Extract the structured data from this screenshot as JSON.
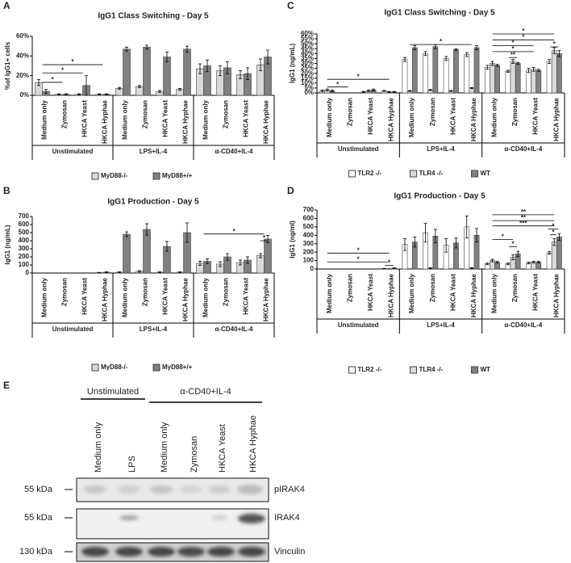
{
  "chart_data": [
    {
      "type": "bar",
      "panel": "A",
      "title": "IgG1 Class Switching - Day 5",
      "y_label": "%of IgG1+ cells",
      "categories": [
        "Medium only",
        "Zymosan",
        "HKCA Yeast",
        "HKCA Hyphae",
        "Medium only",
        "Zymosan",
        "HKCA Yeast",
        "HKCA Hyphae",
        "Medium only",
        "Zymosan",
        "HKCA Yeast",
        "HKCA Hyphae"
      ],
      "groups": [
        "Unstimulated",
        "LPS+IL-4",
        "α-CD40+IL-4"
      ],
      "series": [
        {
          "name": "MyD88-/-",
          "color": "#d9d9d9",
          "values": [
            13,
            1,
            1,
            1,
            7,
            9,
            4,
            6,
            27,
            25,
            21,
            31
          ],
          "errors": [
            3,
            0.5,
            0.5,
            0.5,
            1,
            1,
            1,
            1,
            5,
            5,
            4,
            6
          ]
        },
        {
          "name": "MyD88+/+",
          "color": "#808080",
          "values": [
            4,
            1,
            10,
            1,
            47,
            49,
            39,
            47,
            30,
            28,
            22,
            39
          ],
          "errors": [
            2,
            0.5,
            10,
            0.5,
            2,
            2,
            5,
            3,
            6,
            6,
            6,
            7
          ]
        }
      ],
      "ylim": [
        0,
        60
      ],
      "yticks": [
        {
          "value": 0,
          "label": "0%"
        },
        {
          "value": 20,
          "label": "20%"
        },
        {
          "value": 40,
          "label": "40%"
        },
        {
          "value": 60,
          "label": "60%"
        }
      ],
      "annotations": [
        "*",
        "*",
        "*"
      ]
    },
    {
      "type": "bar",
      "panel": "B",
      "title": "IgG1 Production - Day 5",
      "y_label": "IgG1 (ng/mL)",
      "categories": [
        "Medium only",
        "Zymosan",
        "HKCA Yeast",
        "HKCA Hyphae",
        "Medium only",
        "Zymosan",
        "HKCA Yeast",
        "HKCA Hyphae",
        "Medium only",
        "Zymosan",
        "HKCA Yeast",
        "HKCA Hyphae"
      ],
      "groups": [
        "Unstimulated",
        "LPS+IL-4",
        "α-CD40+IL-4"
      ],
      "series": [
        {
          "name": "MyD88-/-",
          "color": "#d9d9d9",
          "values": [
            0,
            0,
            0,
            5,
            10,
            20,
            10,
            10,
            120,
            110,
            130,
            215
          ],
          "errors": [
            0,
            0,
            0,
            3,
            5,
            10,
            5,
            5,
            25,
            30,
            30,
            25
          ]
        },
        {
          "name": "MyD88+/+",
          "color": "#808080",
          "values": [
            0,
            0,
            0,
            10,
            480,
            540,
            330,
            500,
            145,
            200,
            160,
            420
          ],
          "errors": [
            0,
            0,
            0,
            5,
            30,
            70,
            60,
            120,
            30,
            40,
            40,
            45
          ]
        }
      ],
      "ylim": [
        0,
        700
      ],
      "yticks": [
        0,
        100,
        200,
        300,
        400,
        500,
        600,
        700
      ],
      "annotations": [
        "*",
        "*"
      ]
    },
    {
      "type": "bar",
      "panel": "C",
      "title": "IgG1 Class Switching - Day 5",
      "y_label": "IgG1 (ng/mL)",
      "categories": [
        "Medium only",
        "Zymosan",
        "HKCA Yeast",
        "HKCA Hyphae",
        "Medium only",
        "Zymosan",
        "HKCA Yeast",
        "HKCA Hyphae",
        "Medium only",
        "Zymosan",
        "HKCA Yeast",
        "HKCA Hyphae"
      ],
      "groups": [
        "Unstimulated",
        "LPS+IL-4",
        "α-CD40+IL-4"
      ],
      "series": [
        {
          "name": "TLR2 -/-",
          "color": "#ffffff",
          "values": [
            2,
            0,
            1,
            2,
            34,
            40,
            35,
            39,
            26,
            22,
            23,
            32
          ],
          "errors": [
            1,
            0,
            0.5,
            0.5,
            2,
            2,
            2,
            2,
            2,
            1,
            2,
            2
          ]
        },
        {
          "name": "TLR4 -/-",
          "color": "#d9d9d9",
          "values": [
            3,
            0,
            2,
            1,
            2,
            3,
            2,
            5,
            30,
            32,
            24,
            43
          ],
          "errors": [
            1,
            0,
            1,
            0.5,
            0.5,
            0.5,
            0.5,
            0.5,
            2,
            2,
            2,
            3
          ]
        },
        {
          "name": "WT",
          "color": "#808080",
          "values": [
            2,
            0,
            3,
            1,
            46,
            47,
            44,
            46,
            28,
            30,
            23,
            40
          ],
          "errors": [
            1,
            0,
            1,
            0.5,
            2,
            2,
            1,
            2,
            1,
            1,
            1,
            3
          ]
        }
      ],
      "ylim": [
        0,
        60
      ],
      "yticks": [
        {
          "value": 0,
          "label": "0%"
        },
        {
          "value": 5,
          "label": "5%"
        },
        {
          "value": 10,
          "label": "10%"
        },
        {
          "value": 15,
          "label": "15%"
        },
        {
          "value": 20,
          "label": "20%"
        },
        {
          "value": 25,
          "label": "25%"
        },
        {
          "value": 30,
          "label": "30%"
        },
        {
          "value": 35,
          "label": "35%"
        },
        {
          "value": 40,
          "label": "40%"
        },
        {
          "value": 45,
          "label": "45%"
        },
        {
          "value": 50,
          "label": "50%"
        },
        {
          "value": 55,
          "label": "55%"
        },
        {
          "value": 60,
          "label": "60%"
        }
      ],
      "annotations": [
        "*",
        "*",
        "*",
        "*",
        "*",
        "*",
        "*",
        "**",
        "*"
      ]
    },
    {
      "type": "bar",
      "panel": "D",
      "title": "IgG1 Production - Day 5",
      "y_label": "IgG1 (ng/ml)",
      "categories": [
        "Medium only",
        "Zymosan",
        "HKCA Yeast",
        "HKCA Hyphae",
        "Medium only",
        "Zymosan",
        "HKCA Yeast",
        "HKCA Hyphae",
        "Medium only",
        "Zymosan",
        "HKCA Yeast",
        "HKCA Hyphae"
      ],
      "groups": [
        "Unstimulated",
        "LPS+IL-4",
        "α-CD40+IL-4"
      ],
      "series": [
        {
          "name": "TLR2 -/-",
          "color": "#ffffff",
          "values": [
            0,
            0,
            0,
            5,
            290,
            430,
            280,
            500,
            60,
            60,
            70,
            190
          ],
          "errors": [
            0,
            0,
            0,
            2,
            70,
            110,
            80,
            130,
            10,
            10,
            10,
            15
          ]
        },
        {
          "name": "TLR4 -/-",
          "color": "#d9d9d9",
          "values": [
            0,
            0,
            0,
            2,
            0,
            10,
            0,
            10,
            100,
            140,
            80,
            320
          ],
          "errors": [
            0,
            0,
            0,
            1,
            0,
            5,
            0,
            5,
            15,
            30,
            10,
            40
          ]
        },
        {
          "name": "WT",
          "color": "#808080",
          "values": [
            0,
            0,
            0,
            10,
            320,
            390,
            310,
            400,
            80,
            180,
            80,
            380
          ],
          "errors": [
            0,
            0,
            0,
            3,
            60,
            80,
            60,
            80,
            10,
            30,
            10,
            40
          ]
        }
      ],
      "ylim": [
        0,
        700
      ],
      "yticks": [
        0,
        100,
        200,
        300,
        400,
        500,
        600,
        700
      ],
      "annotations": [
        "*",
        "*",
        "*",
        "**",
        "**",
        "***",
        "*",
        "*",
        "*",
        "*"
      ]
    }
  ],
  "blot": {
    "panel": "E",
    "groups": [
      "Unstimulated",
      "α-CD40+IL-4"
    ],
    "lanes": [
      "Medium only",
      "LPS",
      "Medium only",
      "Zymosan",
      "HKCA Yeast",
      "HKCA Hyphae"
    ],
    "rows": [
      {
        "size": "55 kDa",
        "name": "pIRAK4"
      },
      {
        "size": "55 kDa",
        "name": "IRAK4"
      },
      {
        "size": "130 kDa",
        "name": "Vinculin"
      }
    ]
  }
}
